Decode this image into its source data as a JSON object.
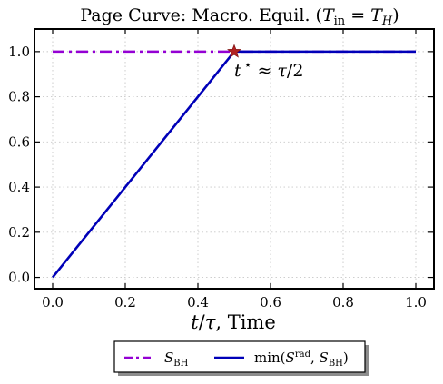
{
  "chart_data": {
    "type": "line",
    "title_parts": {
      "main": "Page Curve: Macro. Equil. (",
      "t1": "T",
      "t1_sub": "in",
      "eq": " = ",
      "t2": "T",
      "t2_sub": "H",
      "close": ")"
    },
    "xlabel_parts": {
      "var": "t",
      "slash": "/",
      "tau": "τ",
      "rest": ", Time"
    },
    "xlim": [
      -0.05,
      1.05
    ],
    "ylim": [
      -0.05,
      1.1
    ],
    "x_ticks": [
      0.0,
      0.2,
      0.4,
      0.6,
      0.8,
      1.0
    ],
    "x_tick_labels": [
      "0.0",
      "0.2",
      "0.4",
      "0.6",
      "0.8",
      "1.0"
    ],
    "y_ticks": [
      0.0,
      0.2,
      0.4,
      0.6,
      0.8,
      1.0
    ],
    "y_tick_labels": [
      "0.0",
      "0.2",
      "0.4",
      "0.6",
      "0.8",
      "1.0"
    ],
    "grid": true,
    "series": [
      {
        "key": "sbh",
        "color": "#9400D3",
        "style": "dash-dot",
        "x": [
          0.0,
          1.0
        ],
        "y": [
          1.0,
          1.0
        ]
      },
      {
        "key": "min",
        "color": "#0000B8",
        "style": "solid",
        "x": [
          0.0,
          0.5,
          1.0
        ],
        "y": [
          0.0,
          1.0,
          1.0
        ]
      }
    ],
    "marker": {
      "x": 0.5,
      "y": 1.0,
      "shape": "star",
      "color": "#B22222"
    },
    "annotation": {
      "x": 0.5,
      "y": 1.0,
      "parts": {
        "t": "t",
        "star": "⋆",
        "approx": " ≈ ",
        "tau": "τ",
        "rest": "/2"
      }
    },
    "legend": {
      "position": "bottom-center",
      "entries": [
        {
          "key": "sbh",
          "parts": {
            "S": "S",
            "sub": "BH"
          }
        },
        {
          "key": "min",
          "parts": {
            "pre": "min(",
            "S": "S",
            "sup": "rad",
            "comma": ", ",
            "S2": "S",
            "sub2": "BH",
            "close": ")"
          }
        }
      ]
    }
  }
}
